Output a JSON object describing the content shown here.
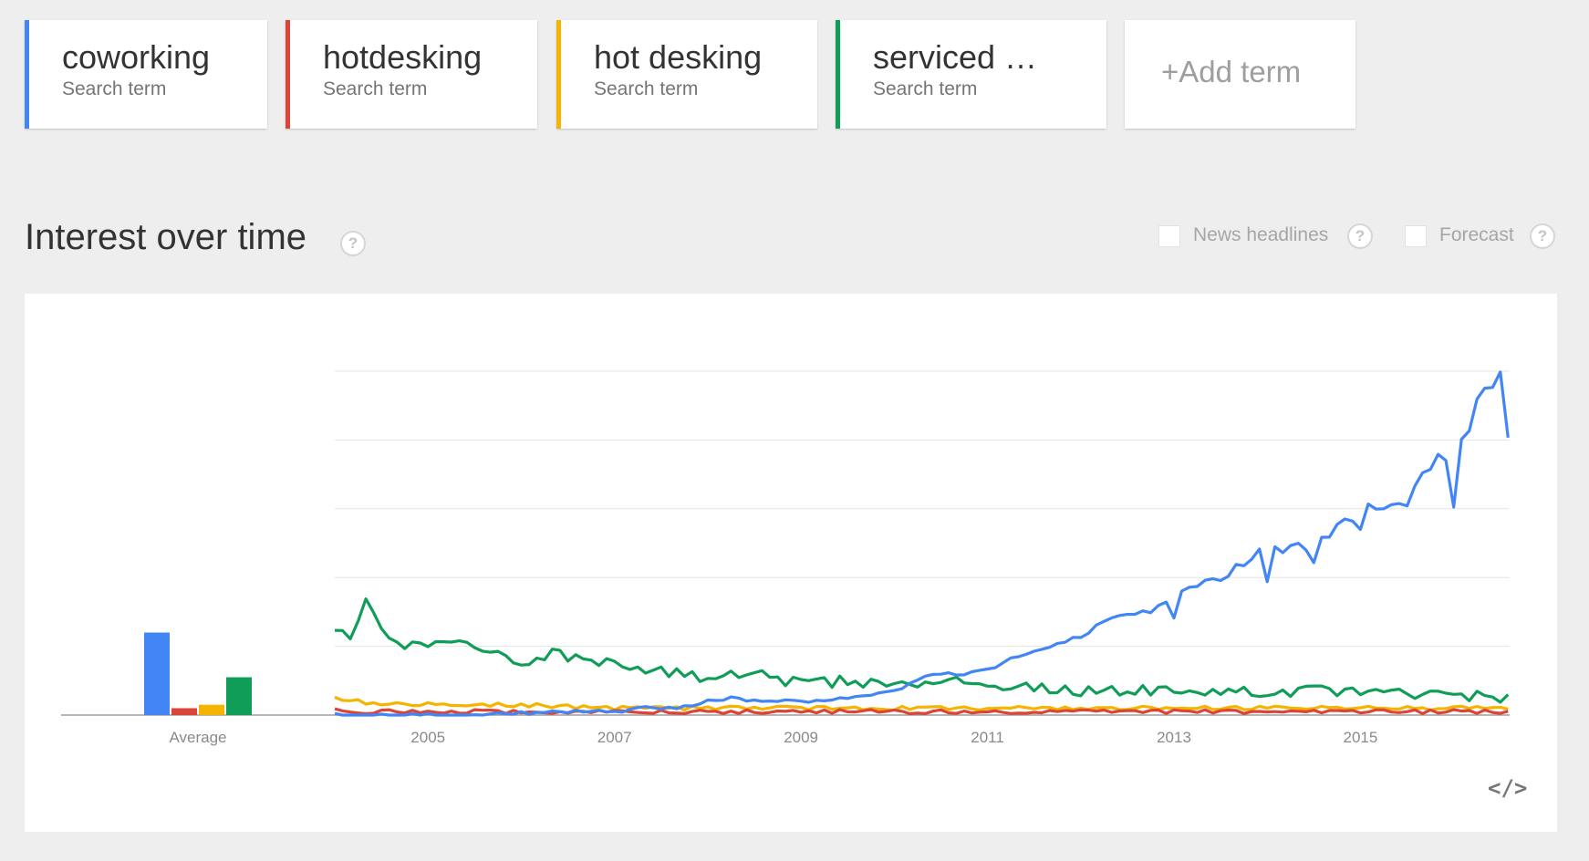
{
  "search_terms": [
    {
      "name": "coworking",
      "sub": "Search term",
      "color": "#4285f4"
    },
    {
      "name": "hotdesking",
      "sub": "Search term",
      "color": "#db4437"
    },
    {
      "name": "hot desking",
      "sub": "Search term",
      "color": "#f4b400"
    },
    {
      "name": "serviced …",
      "sub": "Search term",
      "color": "#0f9d58"
    }
  ],
  "add_term": {
    "label": "+Add term"
  },
  "section": {
    "title": "Interest over time",
    "help_icon": "?"
  },
  "options": {
    "news_headlines": {
      "label": "News headlines",
      "checked": false,
      "help_icon": "?"
    },
    "forecast": {
      "label": "Forecast",
      "checked": false,
      "help_icon": "?"
    }
  },
  "embed": {
    "icon": "code-embed-icon",
    "glyph": "</>"
  },
  "chart_data": {
    "type": "line",
    "x_start": "2004-01",
    "x_end": "2016-07",
    "xticks": [
      "2005",
      "2007",
      "2009",
      "2011",
      "2013",
      "2015"
    ],
    "ylim": [
      0,
      100
    ],
    "grid": true,
    "series": [
      {
        "name": "coworking",
        "color": "#4285f4",
        "keypoints": [
          [
            2004.0,
            0
          ],
          [
            2005.5,
            0
          ],
          [
            2006.5,
            1
          ],
          [
            2007.0,
            1
          ],
          [
            2007.3,
            2
          ],
          [
            2007.7,
            2
          ],
          [
            2008.0,
            4
          ],
          [
            2008.3,
            5
          ],
          [
            2008.5,
            4
          ],
          [
            2009.0,
            4
          ],
          [
            2009.5,
            5
          ],
          [
            2010.0,
            7
          ],
          [
            2010.4,
            12
          ],
          [
            2010.8,
            12
          ],
          [
            2011.0,
            13
          ],
          [
            2011.3,
            17
          ],
          [
            2011.7,
            20
          ],
          [
            2012.0,
            23
          ],
          [
            2012.5,
            30
          ],
          [
            2012.8,
            30
          ],
          [
            2013.0,
            35
          ],
          [
            2013.5,
            40
          ],
          [
            2014.0,
            48
          ],
          [
            2014.5,
            50
          ],
          [
            2015.0,
            60
          ],
          [
            2015.5,
            64
          ],
          [
            2016.0,
            78
          ],
          [
            2016.5,
            100
          ],
          [
            2016.6,
            80
          ]
        ],
        "dips": [
          [
            2013.0,
            -7
          ],
          [
            2014.0,
            -8
          ],
          [
            2014.5,
            -5
          ],
          [
            2015.0,
            -8
          ],
          [
            2015.5,
            -4
          ],
          [
            2016.0,
            -15
          ]
        ]
      },
      {
        "name": "hotdesking",
        "color": "#db4437",
        "keypoints": [
          [
            2004.0,
            2
          ],
          [
            2004.3,
            1
          ],
          [
            2004.5,
            1
          ],
          [
            2005.0,
            1
          ],
          [
            2006.0,
            1
          ],
          [
            2007.0,
            1
          ],
          [
            2008.0,
            1
          ],
          [
            2009.0,
            1
          ],
          [
            2010.0,
            1
          ],
          [
            2011.0,
            1
          ],
          [
            2012.0,
            1
          ],
          [
            2013.0,
            1
          ],
          [
            2014.0,
            1
          ],
          [
            2015.0,
            1
          ],
          [
            2016.6,
            1
          ]
        ]
      },
      {
        "name": "hot desking",
        "color": "#f4b400",
        "keypoints": [
          [
            2004.0,
            5
          ],
          [
            2004.5,
            3
          ],
          [
            2005.0,
            3
          ],
          [
            2006.0,
            3
          ],
          [
            2007.0,
            2
          ],
          [
            2007.5,
            2
          ],
          [
            2008.0,
            2
          ],
          [
            2009.0,
            2
          ],
          [
            2010.0,
            2
          ],
          [
            2011.0,
            2
          ],
          [
            2012.0,
            2
          ],
          [
            2013.0,
            2
          ],
          [
            2014.0,
            2
          ],
          [
            2015.0,
            2
          ],
          [
            2016.6,
            2
          ]
        ]
      },
      {
        "name": "serviced …",
        "color": "#0f9d58",
        "keypoints": [
          [
            2004.0,
            24
          ],
          [
            2004.2,
            22
          ],
          [
            2004.35,
            37
          ],
          [
            2004.5,
            24
          ],
          [
            2004.8,
            20
          ],
          [
            2005.2,
            20
          ],
          [
            2005.6,
            20
          ],
          [
            2006.0,
            15
          ],
          [
            2006.3,
            18
          ],
          [
            2006.5,
            17
          ],
          [
            2007.0,
            15
          ],
          [
            2007.5,
            13
          ],
          [
            2008.0,
            11
          ],
          [
            2008.5,
            12
          ],
          [
            2009.0,
            9
          ],
          [
            2009.5,
            10
          ],
          [
            2010.0,
            9
          ],
          [
            2010.5,
            10
          ],
          [
            2011.0,
            9
          ],
          [
            2011.5,
            8
          ],
          [
            2012.0,
            7
          ],
          [
            2012.5,
            7
          ],
          [
            2013.0,
            7
          ],
          [
            2013.5,
            7
          ],
          [
            2014.0,
            7
          ],
          [
            2015.0,
            7
          ],
          [
            2016.0,
            6
          ],
          [
            2016.6,
            5
          ]
        ]
      }
    ],
    "averages": [
      {
        "name": "coworking",
        "value": 24,
        "color": "#4285f4"
      },
      {
        "name": "hotdesking",
        "value": 2,
        "color": "#db4437"
      },
      {
        "name": "hot desking",
        "value": 3,
        "color": "#f4b400"
      },
      {
        "name": "serviced …",
        "value": 11,
        "color": "#0f9d58"
      }
    ],
    "average_label": "Average"
  }
}
